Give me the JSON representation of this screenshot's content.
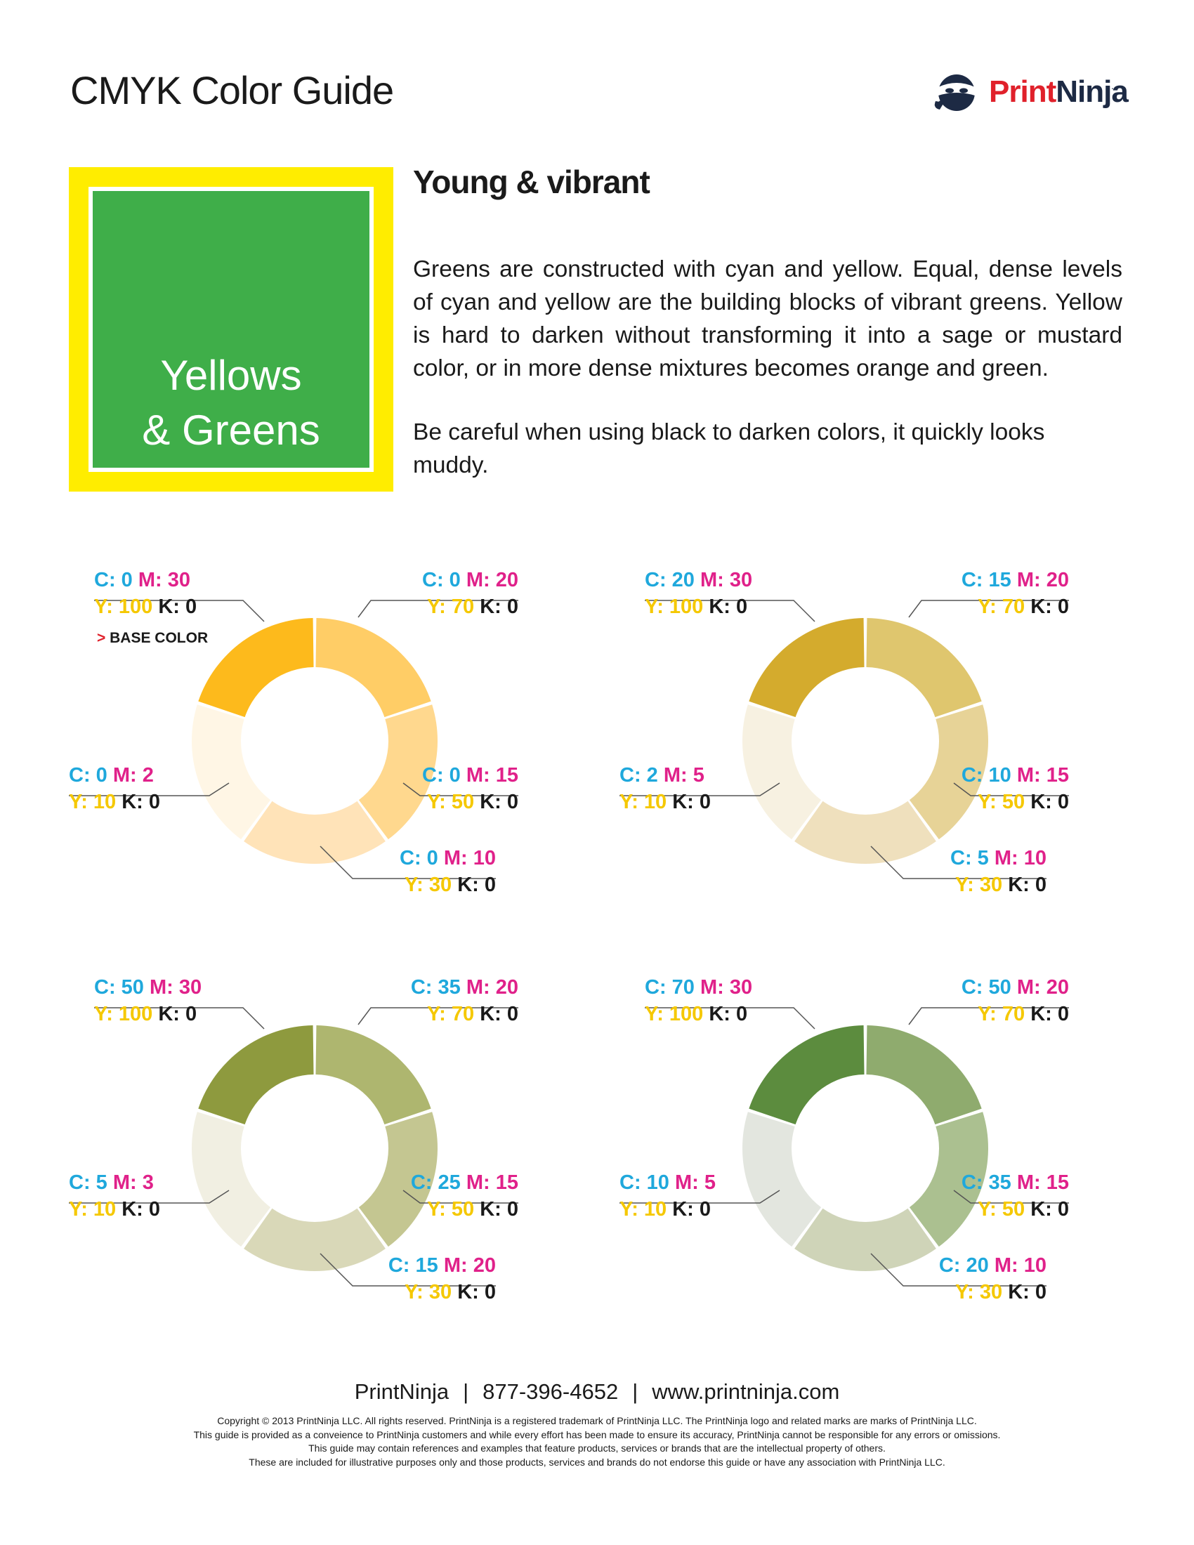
{
  "header": {
    "title": "CMYK Color Guide",
    "logo": {
      "part1": "Print",
      "part2": "Ninja",
      "tm": "."
    }
  },
  "swatch": {
    "line1": "Yellows",
    "line2": "& Greens",
    "border_color": "#ffed00",
    "fill_color": "#3fae49"
  },
  "section": {
    "heading": "Young & vibrant",
    "paragraph1": "Greens are constructed with cyan and yellow. Equal, dense levels of cyan and yellow are the building blocks of vibrant greens. Yellow is hard to darken without transforming it into a sage or mustard color, or in more dense mixtures becomes orange and green.",
    "paragraph2": "Be careful when using black to darken colors, it quickly looks muddy."
  },
  "colors": {
    "cyan_label": "#1fa8dc",
    "magenta_label": "#e0218a",
    "yellow_label": "#f5c800",
    "key_label": "#1a1a1a",
    "arrow": "#e0212b"
  },
  "base_color_marker": {
    "arrow": ">",
    "text": "BASE COLOR"
  },
  "wheels": [
    {
      "segments": [
        {
          "color": "#fdba1c",
          "c": "0",
          "m": "30",
          "y": "100",
          "k": "0"
        },
        {
          "color": "#ffcd66",
          "c": "0",
          "m": "20",
          "y": "70",
          "k": "0"
        },
        {
          "color": "#ffd88e",
          "c": "0",
          "m": "15",
          "y": "50",
          "k": "0"
        },
        {
          "color": "#ffe3b8",
          "c": "0",
          "m": "10",
          "y": "30",
          "k": "0"
        },
        {
          "color": "#fff6e5",
          "c": "0",
          "m": "2",
          "y": "10",
          "k": "0"
        }
      ]
    },
    {
      "segments": [
        {
          "color": "#d4ab2d",
          "c": "20",
          "m": "30",
          "y": "100",
          "k": "0"
        },
        {
          "color": "#dfc66e",
          "c": "15",
          "m": "20",
          "y": "70",
          "k": "0"
        },
        {
          "color": "#e7d397",
          "c": "10",
          "m": "15",
          "y": "50",
          "k": "0"
        },
        {
          "color": "#efe0bd",
          "c": "5",
          "m": "10",
          "y": "30",
          "k": "0"
        },
        {
          "color": "#f7f1e1",
          "c": "2",
          "m": "5",
          "y": "10",
          "k": "0"
        }
      ]
    },
    {
      "segments": [
        {
          "color": "#8e9a3e",
          "c": "50",
          "m": "30",
          "y": "100",
          "k": "0"
        },
        {
          "color": "#aeb66f",
          "c": "35",
          "m": "20",
          "y": "70",
          "k": "0"
        },
        {
          "color": "#c4c691",
          "c": "25",
          "m": "15",
          "y": "50",
          "k": "0"
        },
        {
          "color": "#d9d8b8",
          "c": "15",
          "m": "20",
          "y": "30",
          "k": "0"
        },
        {
          "color": "#f1efe2",
          "c": "5",
          "m": "3",
          "y": "10",
          "k": "0"
        }
      ]
    },
    {
      "segments": [
        {
          "color": "#5c8c3e",
          "c": "70",
          "m": "30",
          "y": "100",
          "k": "0"
        },
        {
          "color": "#8fab6e",
          "c": "50",
          "m": "20",
          "y": "70",
          "k": "0"
        },
        {
          "color": "#abc090",
          "c": "35",
          "m": "15",
          "y": "50",
          "k": "0"
        },
        {
          "color": "#cfd4b8",
          "c": "20",
          "m": "10",
          "y": "30",
          "k": "0"
        },
        {
          "color": "#e3e6df",
          "c": "10",
          "m": "5",
          "y": "10",
          "k": "0"
        }
      ]
    }
  ],
  "footer": {
    "company": "PrintNinja",
    "phone": "877-396-4652",
    "website": "www.printninja.com",
    "separator": "|",
    "fine_print": [
      "Copyright © 2013 PrintNinja LLC. All rights reserved. PrintNinja is a registered trademark of PrintNinja LLC. The PrintNinja logo and related marks are marks of PrintNinja LLC.",
      "This guide is provided as a conveience to PrintNinja customers and while every effort has been made to ensure its accuracy, PrintNinja cannot be responsible for any errors or omissions.",
      "This guide may contain references and examples that feature products, services or brands that are the intellectual property of others.",
      "These are included for illustrative purposes only and those products, services and brands do not endorse this guide or have any association with PrintNinja LLC."
    ]
  }
}
